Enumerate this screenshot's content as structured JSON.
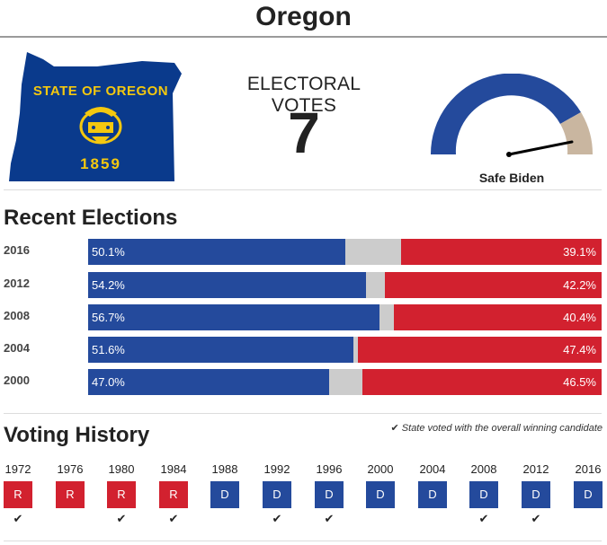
{
  "header": {
    "title": "Oregon"
  },
  "state_seal": {
    "top_text": "STATE OF OREGON",
    "year": "1859",
    "colors": {
      "field": "#0a3a8c",
      "gold": "#f4c80f"
    }
  },
  "electoral": {
    "label": "ELECTORAL VOTES",
    "count": "7"
  },
  "rating": {
    "label": "Safe Biden",
    "gauge_fraction": 0.95,
    "colors": {
      "dem": "#244a9c",
      "rep": "#c9b6a0"
    }
  },
  "recent_elections": {
    "title": "Recent Elections",
    "rows": [
      {
        "year": "2016",
        "dem_pct": 50.1,
        "rep_pct": 39.1,
        "dem_label": "50.1%",
        "rep_label": "39.1%"
      },
      {
        "year": "2012",
        "dem_pct": 54.2,
        "rep_pct": 42.2,
        "dem_label": "54.2%",
        "rep_label": "42.2%"
      },
      {
        "year": "2008",
        "dem_pct": 56.7,
        "rep_pct": 40.4,
        "dem_label": "56.7%",
        "rep_label": "40.4%"
      },
      {
        "year": "2004",
        "dem_pct": 51.6,
        "rep_pct": 47.4,
        "dem_label": "51.6%",
        "rep_label": "47.4%"
      },
      {
        "year": "2000",
        "dem_pct": 47.0,
        "rep_pct": 46.5,
        "dem_label": "47.0%",
        "rep_label": "46.5%"
      }
    ],
    "colors": {
      "dem": "#244a9c",
      "other": "#cccccc",
      "rep": "#d2212f"
    }
  },
  "voting_history": {
    "title": "Voting History",
    "legend_check": "✔",
    "legend_note": "State voted with the overall winning candidate",
    "items": [
      {
        "year": "1972",
        "party": "R",
        "winner": true
      },
      {
        "year": "1976",
        "party": "R",
        "winner": false
      },
      {
        "year": "1980",
        "party": "R",
        "winner": true
      },
      {
        "year": "1984",
        "party": "R",
        "winner": true
      },
      {
        "year": "1988",
        "party": "D",
        "winner": false
      },
      {
        "year": "1992",
        "party": "D",
        "winner": true
      },
      {
        "year": "1996",
        "party": "D",
        "winner": true
      },
      {
        "year": "2000",
        "party": "D",
        "winner": false
      },
      {
        "year": "2004",
        "party": "D",
        "winner": false
      },
      {
        "year": "2008",
        "party": "D",
        "winner": true
      },
      {
        "year": "2012",
        "party": "D",
        "winner": true
      },
      {
        "year": "2016",
        "party": "D",
        "winner": false
      }
    ]
  }
}
